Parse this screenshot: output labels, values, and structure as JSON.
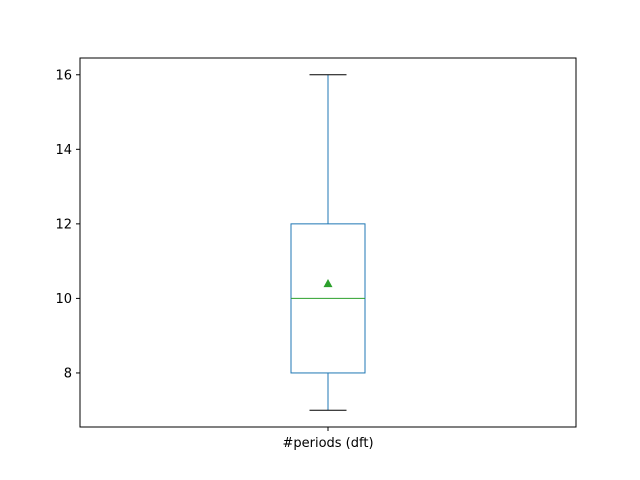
{
  "chart_data": {
    "type": "box",
    "categories": [
      "#periods (dft)"
    ],
    "boxes": [
      {
        "label": "#periods (dft)",
        "whisker_low": 7,
        "q1": 8,
        "median": 10,
        "q3": 12,
        "whisker_high": 16,
        "mean": 10.4
      }
    ],
    "ylim": [
      6.55,
      16.45
    ],
    "yticks": [
      8,
      10,
      12,
      14,
      16
    ],
    "grid": false,
    "colors": {
      "box": "#1f77b4",
      "median": "#2ca02c",
      "mean_marker": "#2ca02c",
      "whisker": "#1f77b4",
      "cap": "#000000",
      "axes": "#000000"
    }
  }
}
